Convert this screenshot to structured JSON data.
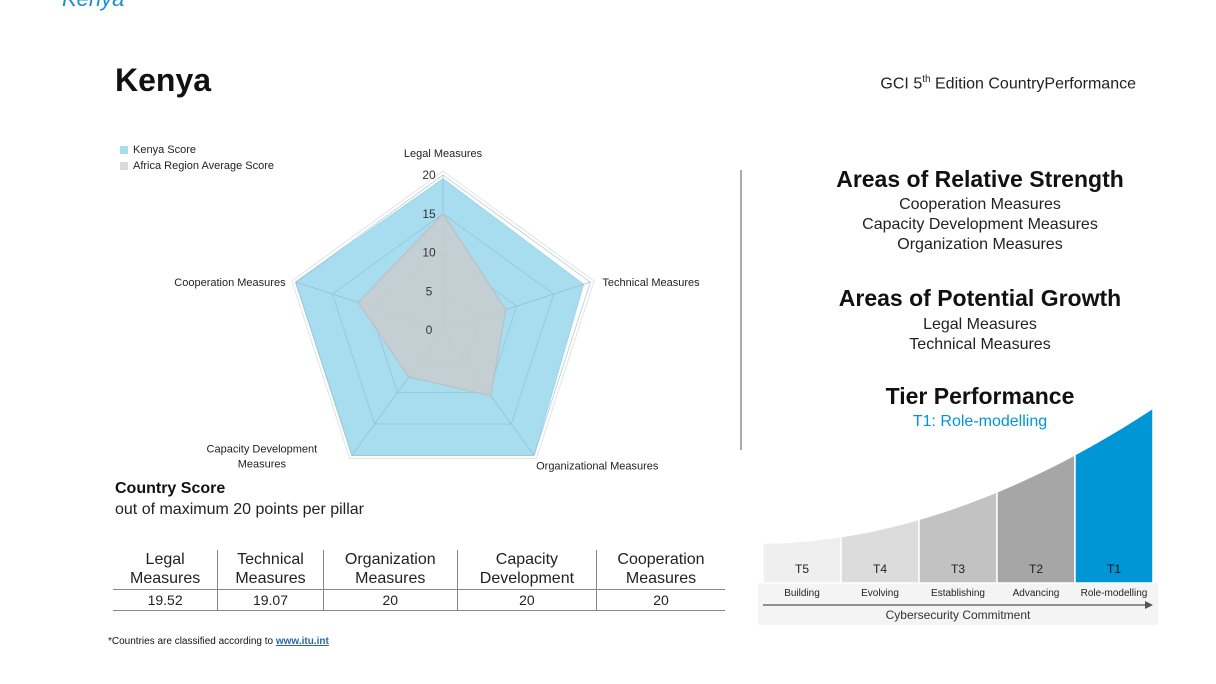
{
  "header": {
    "top_cut_text": "Kenya",
    "country": "Kenya",
    "edition_prefix": "GCI 5",
    "edition_sup": "th",
    "edition_suffix": " Edition CountryPerformance"
  },
  "chart_data": [
    {
      "type": "radar",
      "axes": [
        "Legal Measures",
        "Technical Measures",
        "Organizational Measures",
        "Capacity Development Measures",
        "Cooperation Measures"
      ],
      "axis_label_lines": [
        [
          "Legal Measures"
        ],
        [
          "Technical Measures"
        ],
        [
          "Organizational Measures"
        ],
        [
          "Capacity Development",
          "Measures"
        ],
        [
          "Cooperation Measures"
        ]
      ],
      "ticks": [
        0,
        5,
        10,
        15,
        20
      ],
      "range": [
        0,
        20
      ],
      "legend": [
        "Kenya Score",
        "Africa Region Average Score"
      ],
      "series": [
        {
          "name": "Kenya Score",
          "values": [
            19.52,
            19.07,
            20,
            20,
            20
          ],
          "color": "#a8dcef"
        },
        {
          "name": "Africa Region Average Score",
          "values": [
            15,
            8.5,
            10.5,
            7.5,
            11.5
          ],
          "color": "#c9cdcf"
        }
      ],
      "legend_position": "top-left"
    },
    {
      "type": "bar",
      "categories": [
        "Building",
        "Evolving",
        "Establishing",
        "Advancing",
        "Role-modelling"
      ],
      "tier_codes": [
        "T5",
        "T4",
        "T3",
        "T2",
        "T1"
      ],
      "xlabel": "Cybersecurity Commitment",
      "highlight": "T1",
      "colors": [
        "#efefef",
        "#dcdcdc",
        "#c2c2c2",
        "#a6a6a6",
        "#0096d6"
      ]
    }
  ],
  "strengths": {
    "title": "Areas of Relative Strength",
    "items": [
      "Cooperation Measures",
      "Capacity Development Measures",
      "Organization Measures"
    ]
  },
  "growth": {
    "title": "Areas of Potential Growth",
    "items": [
      "Legal Measures",
      "Technical Measures"
    ]
  },
  "tier": {
    "title": "Tier Performance",
    "value": "T1: Role-modelling",
    "value_color": "#0096d6"
  },
  "score": {
    "title": "Country Score",
    "subtitle": "out of maximum 20 points per pillar",
    "headers": [
      [
        "Legal",
        "Measures"
      ],
      [
        "Technical",
        "Measures"
      ],
      [
        "Organization",
        "Measures"
      ],
      [
        "Capacity",
        "Development"
      ],
      [
        "Cooperation",
        "Measures"
      ]
    ],
    "values": [
      "19.52",
      "19.07",
      "20",
      "20",
      "20"
    ]
  },
  "footnote": {
    "text": "*Countries are classified according to ",
    "link": "www.itu.int"
  }
}
